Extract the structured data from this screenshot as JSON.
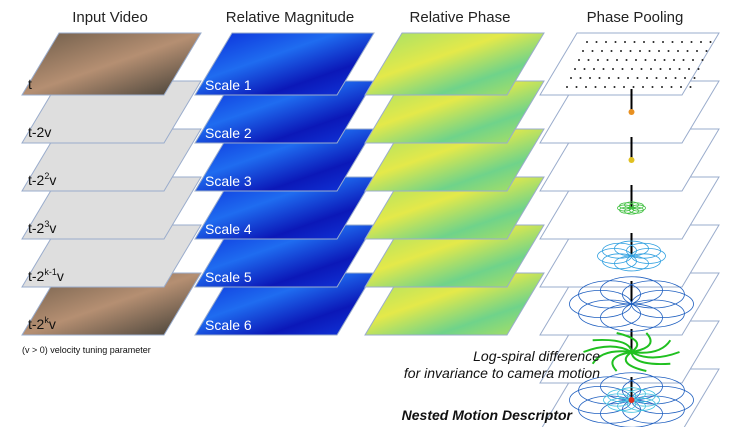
{
  "headers": [
    "Input Video",
    "Relative Magnitude",
    "Relative Phase",
    "Phase Pooling"
  ],
  "input_video": {
    "frame_labels": [
      "t",
      "t-2v",
      {
        "text": "t-2",
        "sup": "2",
        "end": "v"
      },
      {
        "text": "t-2",
        "sup": "3",
        "end": "v"
      },
      {
        "text": "t-2",
        "sup": "k-1",
        "end": "v"
      },
      {
        "text": "t-2",
        "sup": "k",
        "end": "v"
      }
    ],
    "note": "(v > 0) velocity tuning parameter"
  },
  "magnitude": {
    "scales": [
      "Scale 1",
      "Scale 2",
      "Scale 3",
      "Scale 4",
      "Scale 5",
      "Scale 6"
    ]
  },
  "pooling": {
    "caption_lines": [
      "Log-spiral difference",
      "for invariance to camera motion"
    ],
    "title": "Nested Motion Descriptor"
  }
}
